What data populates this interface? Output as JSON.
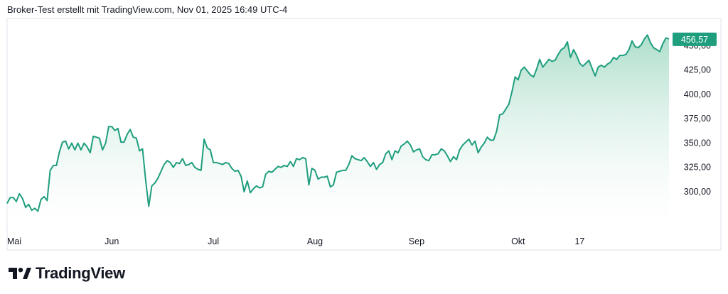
{
  "header": {
    "caption": "Broker-Test erstellt mit TradingView.com, Nov 01, 2025 16:49 UTC-4"
  },
  "footer": {
    "brand": "TradingView",
    "logo_icon": "tradingview-logo-icon"
  },
  "colors": {
    "line": "#1f9e7e",
    "fill_top": "#a9dcc8",
    "fill_bottom": "#ffffff",
    "badge_bg": "#1f9e7e",
    "badge_text": "#ffffff",
    "axis_text": "#131722",
    "border": "#e0e3eb"
  },
  "chart_data": {
    "type": "area",
    "title": "",
    "xlabel": "",
    "ylabel": "",
    "ylim": [
      265,
      478
    ],
    "x_tick_labels": [
      "Mai",
      "Jun",
      "Jul",
      "Aug",
      "Sep",
      "Okt",
      "17"
    ],
    "y_tick_values": [
      300,
      325,
      350,
      375,
      400,
      425,
      450
    ],
    "y_tick_labels": [
      "300,00",
      "325,00",
      "350,00",
      "375,00",
      "400,00",
      "425,00",
      "450,00"
    ],
    "last_value_label": "456,57",
    "last_value": 456.57,
    "grid": false,
    "series": [
      {
        "values": [
          288,
          294,
          294,
          290,
          298,
          293,
          284,
          287,
          281,
          283,
          280,
          292,
          295,
          291,
          322,
          327,
          327,
          341,
          351,
          352,
          344,
          350,
          343,
          350,
          343,
          350,
          346,
          340,
          357,
          356,
          355,
          343,
          350,
          367,
          367,
          363,
          365,
          351,
          351,
          359,
          364,
          356,
          355,
          342,
          344,
          312,
          285,
          306,
          309,
          314,
          321,
          328,
          332,
          330,
          325,
          330,
          329,
          334,
          327,
          328,
          330,
          325,
          323,
          322,
          354,
          345,
          343,
          330,
          330,
          329,
          328,
          330,
          329,
          324,
          321,
          322,
          316,
          300,
          311,
          299,
          303,
          306,
          304,
          305,
          318,
          321,
          320,
          323,
          326,
          325,
          327,
          326,
          331,
          326,
          334,
          333,
          335,
          334,
          307,
          324,
          322,
          313,
          315,
          315,
          316,
          305,
          307,
          320,
          321,
          322,
          322,
          328,
          337,
          334,
          333,
          332,
          335,
          331,
          326,
          330,
          323,
          328,
          330,
          339,
          342,
          333,
          342,
          340,
          347,
          349,
          352,
          348,
          341,
          343,
          344,
          336,
          333,
          332,
          338,
          338,
          339,
          344,
          342,
          337,
          331,
          336,
          333,
          343,
          348,
          351,
          354,
          348,
          352,
          340,
          346,
          350,
          356,
          353,
          353,
          362,
          379,
          380,
          385,
          390,
          403,
          418,
          415,
          425,
          428,
          424,
          420,
          418,
          426,
          436,
          428,
          432,
          436,
          434,
          435,
          441,
          446,
          448,
          454,
          438,
          446,
          440,
          432,
          429,
          432,
          435,
          427,
          419,
          428,
          430,
          428,
          431,
          433,
          438,
          436,
          440,
          440,
          441,
          446,
          455,
          449,
          448,
          451,
          457,
          461,
          453,
          448,
          446,
          444,
          452,
          458,
          457
        ]
      }
    ]
  }
}
